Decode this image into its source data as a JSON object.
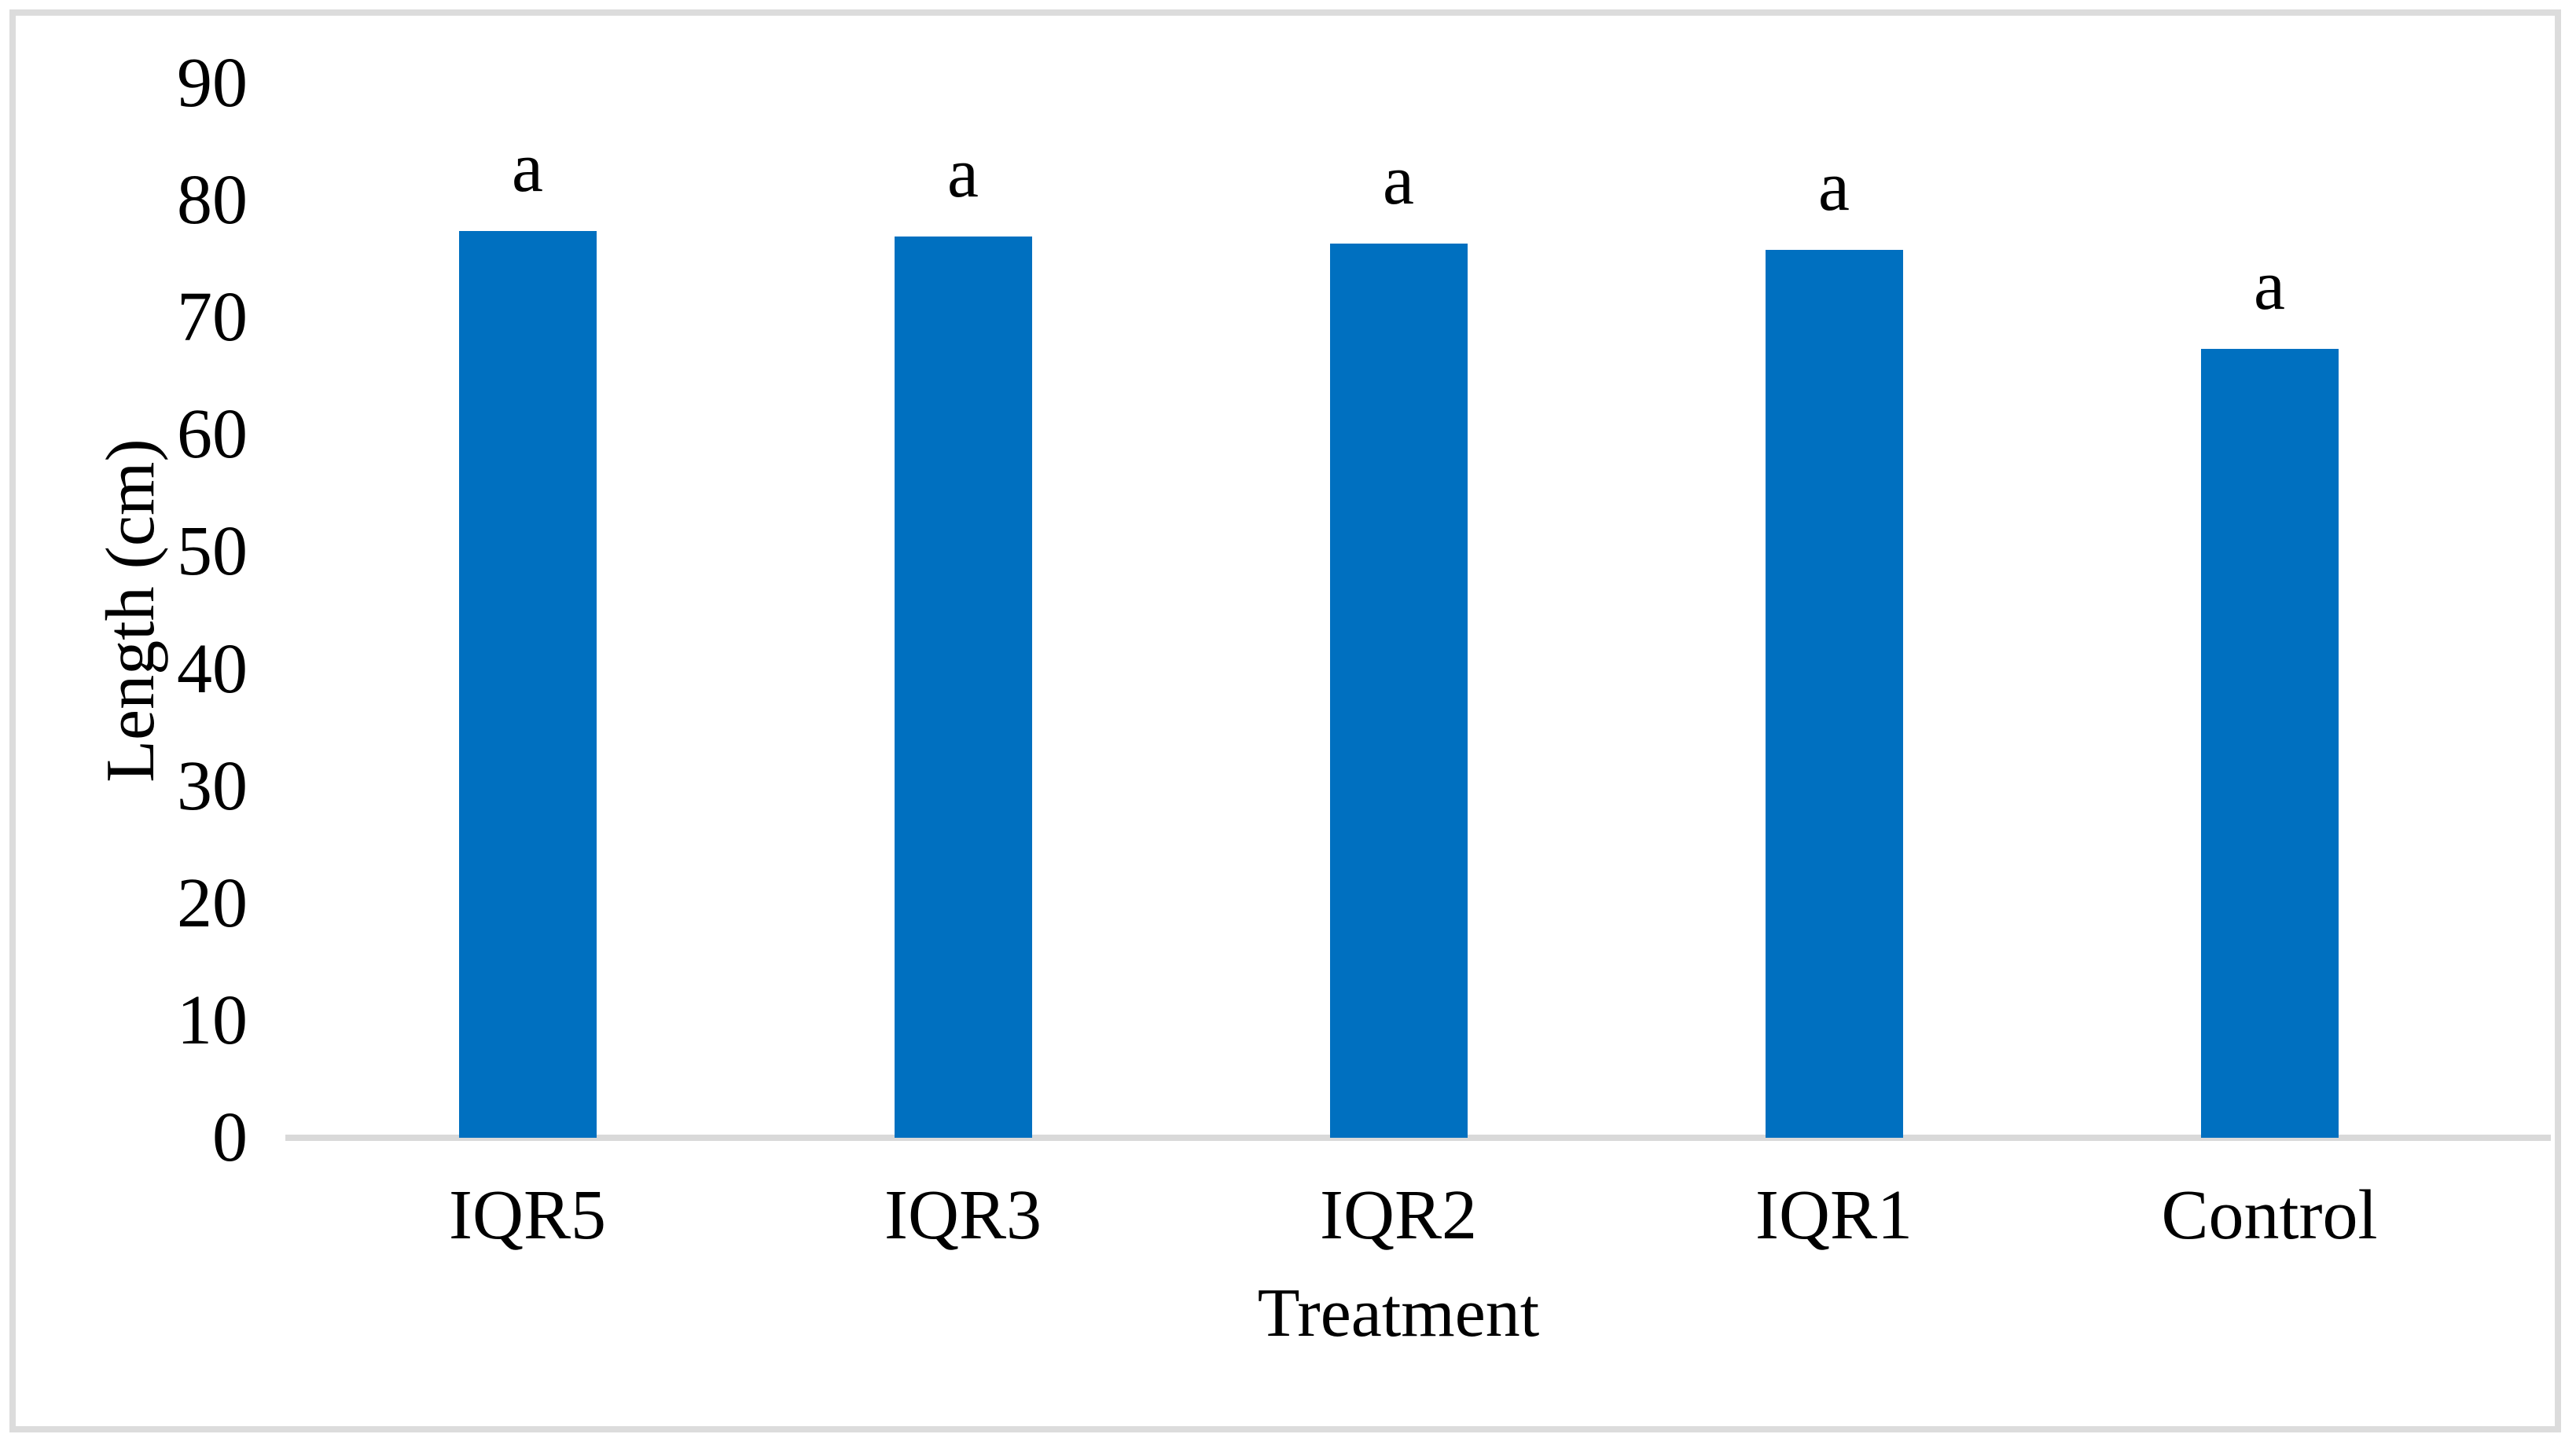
{
  "figure": {
    "background_color": "#FFFFFF",
    "border_color": "#DCDCDC"
  },
  "chart_data": {
    "type": "bar",
    "title": "",
    "categories": [
      "IQR5",
      "IQR3",
      "IQR2",
      "IQR1",
      "Control"
    ],
    "values": [
      77.4,
      76.9,
      76.3,
      75.8,
      67.3
    ],
    "bar_labels": [
      "a",
      "a",
      "a",
      "a",
      "a"
    ],
    "xlabel": "Treatment",
    "ylabel": "Length (cm)",
    "ylim": [
      0,
      90
    ],
    "yticks": [
      0,
      10,
      20,
      30,
      40,
      50,
      60,
      70,
      80,
      90
    ],
    "bar_color": "#0070C0",
    "axis_line_color": "#D9D9D9",
    "text_color": "#000000",
    "gridlines": false,
    "legend_position": "none"
  }
}
